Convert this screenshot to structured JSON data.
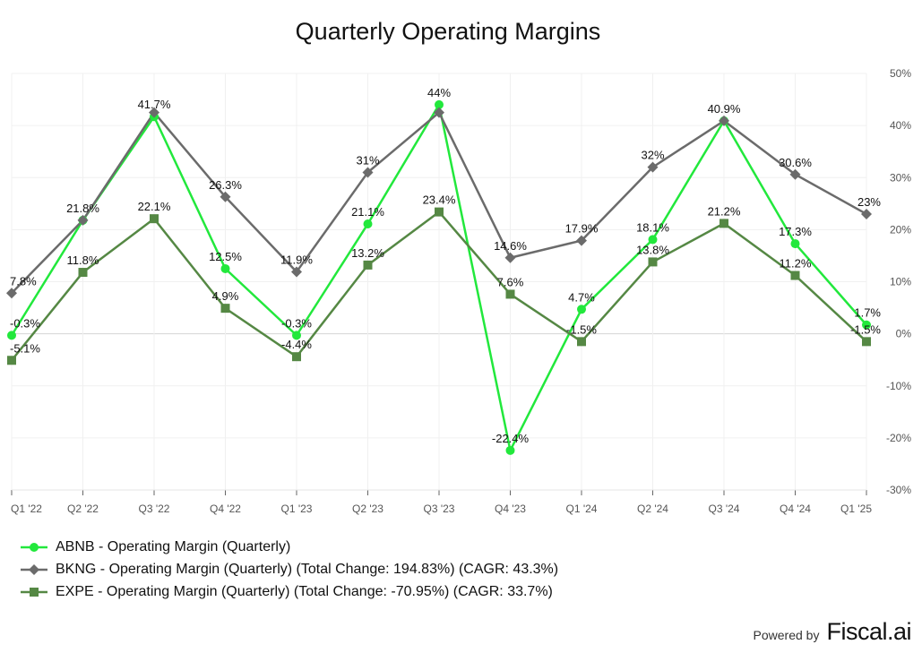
{
  "chart_data": {
    "type": "line",
    "title": "Quarterly Operating Margins",
    "categories": [
      "Q1 '22",
      "Q2 '22",
      "Q3 '22",
      "Q4 '22",
      "Q1 '23",
      "Q2 '23",
      "Q3 '23",
      "Q4 '23",
      "Q1 '24",
      "Q2 '24",
      "Q3 '24",
      "Q4 '24",
      "Q1 '25"
    ],
    "ylim": [
      -30,
      50
    ],
    "yticks": [
      -30,
      -20,
      -10,
      0,
      10,
      20,
      30,
      40,
      50
    ],
    "ytick_labels": [
      "-30%",
      "-20%",
      "-10%",
      "0%",
      "10%",
      "20%",
      "30%",
      "40%",
      "50%"
    ],
    "y_axis_position": "right",
    "grid": true,
    "legend_position": "bottom-left",
    "series": [
      {
        "name": "ABNB - Operating Margin (Quarterly)",
        "color": "#22e83c",
        "marker": "circle",
        "values": [
          -0.3,
          21.8,
          41.7,
          12.5,
          -0.3,
          21.1,
          44,
          -22.4,
          4.7,
          18.1,
          40.9,
          17.3,
          1.7
        ],
        "labels": [
          "-0.3%",
          "21.8%",
          "41.7%",
          "12.5%",
          "-0.3%",
          "21.1%",
          "44%",
          "-22.4%",
          "4.7%",
          "18.1%",
          "40.9%",
          "17.3%",
          "1.7%"
        ]
      },
      {
        "name": "BKNG - Operating Margin (Quarterly) (Total Change: 194.83%) (CAGR: 43.3%)",
        "color": "#6b6b6b",
        "marker": "diamond",
        "values": [
          7.8,
          21.8,
          42.5,
          26.3,
          11.9,
          31,
          42.5,
          14.6,
          17.9,
          32,
          40.9,
          30.6,
          23
        ],
        "labels": [
          "7.8%",
          "",
          "",
          "26.3%",
          "11.9%",
          "31%",
          "",
          "14.6%",
          "17.9%",
          "32%",
          "",
          "30.6%",
          "23%"
        ]
      },
      {
        "name": "EXPE - Operating Margin (Quarterly) (Total Change: -70.95%) (CAGR: 33.7%)",
        "color": "#558844",
        "marker": "square",
        "values": [
          -5.1,
          11.8,
          22.1,
          4.9,
          -4.4,
          13.2,
          23.4,
          7.6,
          -1.5,
          13.8,
          21.2,
          11.2,
          -1.5
        ],
        "labels": [
          "-5.1%",
          "11.8%",
          "22.1%",
          "4.9%",
          "-4.4%",
          "13.2%",
          "23.4%",
          "7.6%",
          "-1.5%",
          "13.8%",
          "21.2%",
          "11.2%",
          "-1.5%"
        ]
      }
    ]
  },
  "footer": {
    "powered_by": "Powered by",
    "brand": "Fiscal.ai"
  }
}
